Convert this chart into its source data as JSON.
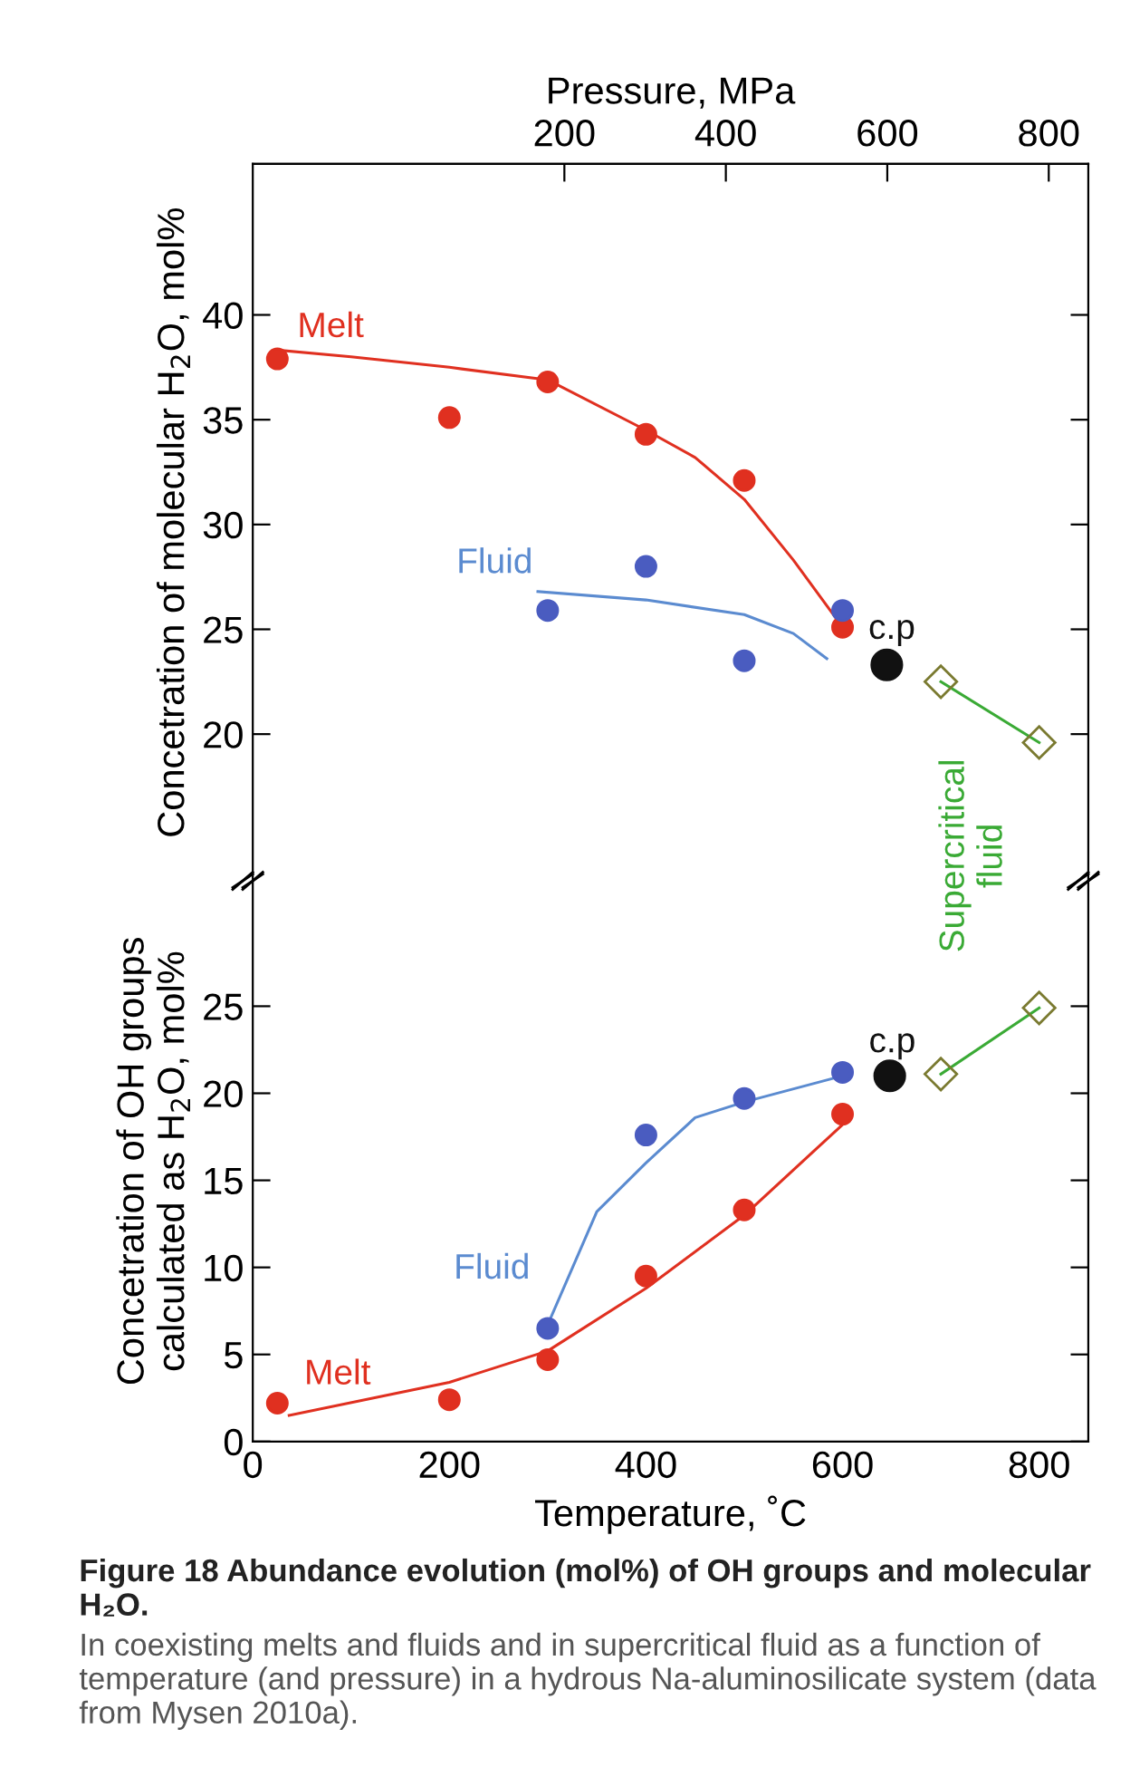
{
  "chart_data": [
    {
      "type": "scatter",
      "ylabel": "Concetration of molecular H$_{2}$O, mol%",
      "x2label": "Pressure, MPa",
      "xlim": [
        0,
        850
      ],
      "x2lim": [
        -186,
        849
      ],
      "x2ticks": [
        200,
        400,
        600,
        800
      ],
      "ylim": [
        13,
        47.2
      ],
      "yticks": [
        20,
        25,
        30,
        35,
        40
      ],
      "tick_labels": "y",
      "grid": false,
      "legend": false,
      "series": [
        {
          "type": "line",
          "name": "Melt",
          "color": "#e03020",
          "marker": "none",
          "x": [
            30,
            100,
            200,
            300,
            400,
            450,
            500,
            550,
            600
          ],
          "values": [
            38.3,
            38.0,
            37.5,
            36.9,
            34.5,
            33.2,
            31.2,
            28.3,
            25.1
          ]
        },
        {
          "type": "line",
          "name": "Fluid",
          "color": "#5b8bd0",
          "marker": "none",
          "x": [
            290,
            400,
            500,
            550,
            584
          ],
          "values": [
            26.8,
            26.4,
            25.7,
            24.8,
            23.6
          ]
        },
        {
          "color": "#e03020",
          "marker": "circle",
          "x": [
            25,
            200,
            300,
            400,
            500,
            600
          ],
          "values": [
            37.9,
            35.1,
            36.8,
            34.3,
            32.1,
            25.1
          ]
        },
        {
          "color": "#4a5cc0",
          "marker": "circle",
          "x": [
            300,
            400,
            500,
            600
          ],
          "values": [
            25.9,
            28.0,
            23.5,
            25.9
          ]
        },
        {
          "name": "c.p",
          "color": "#111111",
          "marker": "circle",
          "x": [
            645
          ],
          "values": [
            23.3
          ]
        },
        {
          "type": "line",
          "name": "Supercritical fluid",
          "color": "#3aaa35",
          "marker": "none",
          "x": [
            700,
            800
          ],
          "values": [
            22.5,
            19.6
          ]
        },
        {
          "color": "#7a7a30",
          "marker": "diamond",
          "x": [
            700,
            800
          ],
          "values": [
            22.5,
            19.6
          ]
        }
      ]
    },
    {
      "type": "scatter",
      "ylabel": "Concetration of OH groups\ncalculated as H$_{2}$O, mol%",
      "xlabel": "Temperature, ˚C",
      "xlim": [
        0,
        850
      ],
      "xticks": [
        0,
        200,
        400,
        600,
        800
      ],
      "ylim": [
        0,
        32.2
      ],
      "yticks": [
        0,
        5,
        10,
        15,
        20,
        25
      ],
      "grid": false,
      "legend": false,
      "annotations": [
        "Figure 18 Abundance evolution (mol%) of OH groups and molecular H₂O.",
        "In coexisting melts and fluids and in supercritical fluid as a function of temperature (and pressure) in a hydrous Na-aluminosilicate system (data from Mysen 2010a)."
      ],
      "series": [
        {
          "type": "line",
          "name": "Melt",
          "color": "#e03020",
          "marker": "none",
          "x": [
            37,
            200,
            300,
            400,
            500,
            600
          ],
          "values": [
            1.5,
            3.4,
            5.2,
            8.8,
            13.0,
            18.2
          ]
        },
        {
          "type": "line",
          "name": "Fluid",
          "color": "#5b8bd0",
          "marker": "none",
          "x": [
            300,
            350,
            400,
            450,
            500,
            600
          ],
          "values": [
            6.7,
            13.2,
            16.0,
            18.6,
            19.5,
            21.0
          ]
        },
        {
          "color": "#e03020",
          "marker": "circle",
          "x": [
            25,
            200,
            300,
            400,
            500,
            600
          ],
          "values": [
            2.2,
            2.4,
            4.7,
            9.5,
            13.3,
            18.8
          ]
        },
        {
          "color": "#4a5cc0",
          "marker": "circle",
          "x": [
            300,
            400,
            500,
            600
          ],
          "values": [
            6.5,
            17.6,
            19.7,
            21.2
          ]
        },
        {
          "name": "c.p",
          "color": "#111111",
          "marker": "circle",
          "x": [
            648
          ],
          "values": [
            21.0
          ]
        },
        {
          "type": "line",
          "color": "#3aaa35",
          "marker": "none",
          "x": [
            700,
            800
          ],
          "values": [
            21.1,
            24.9
          ]
        },
        {
          "color": "#7a7a30",
          "marker": "diamond",
          "x": [
            700,
            800
          ],
          "values": [
            21.1,
            24.9
          ]
        }
      ]
    }
  ]
}
